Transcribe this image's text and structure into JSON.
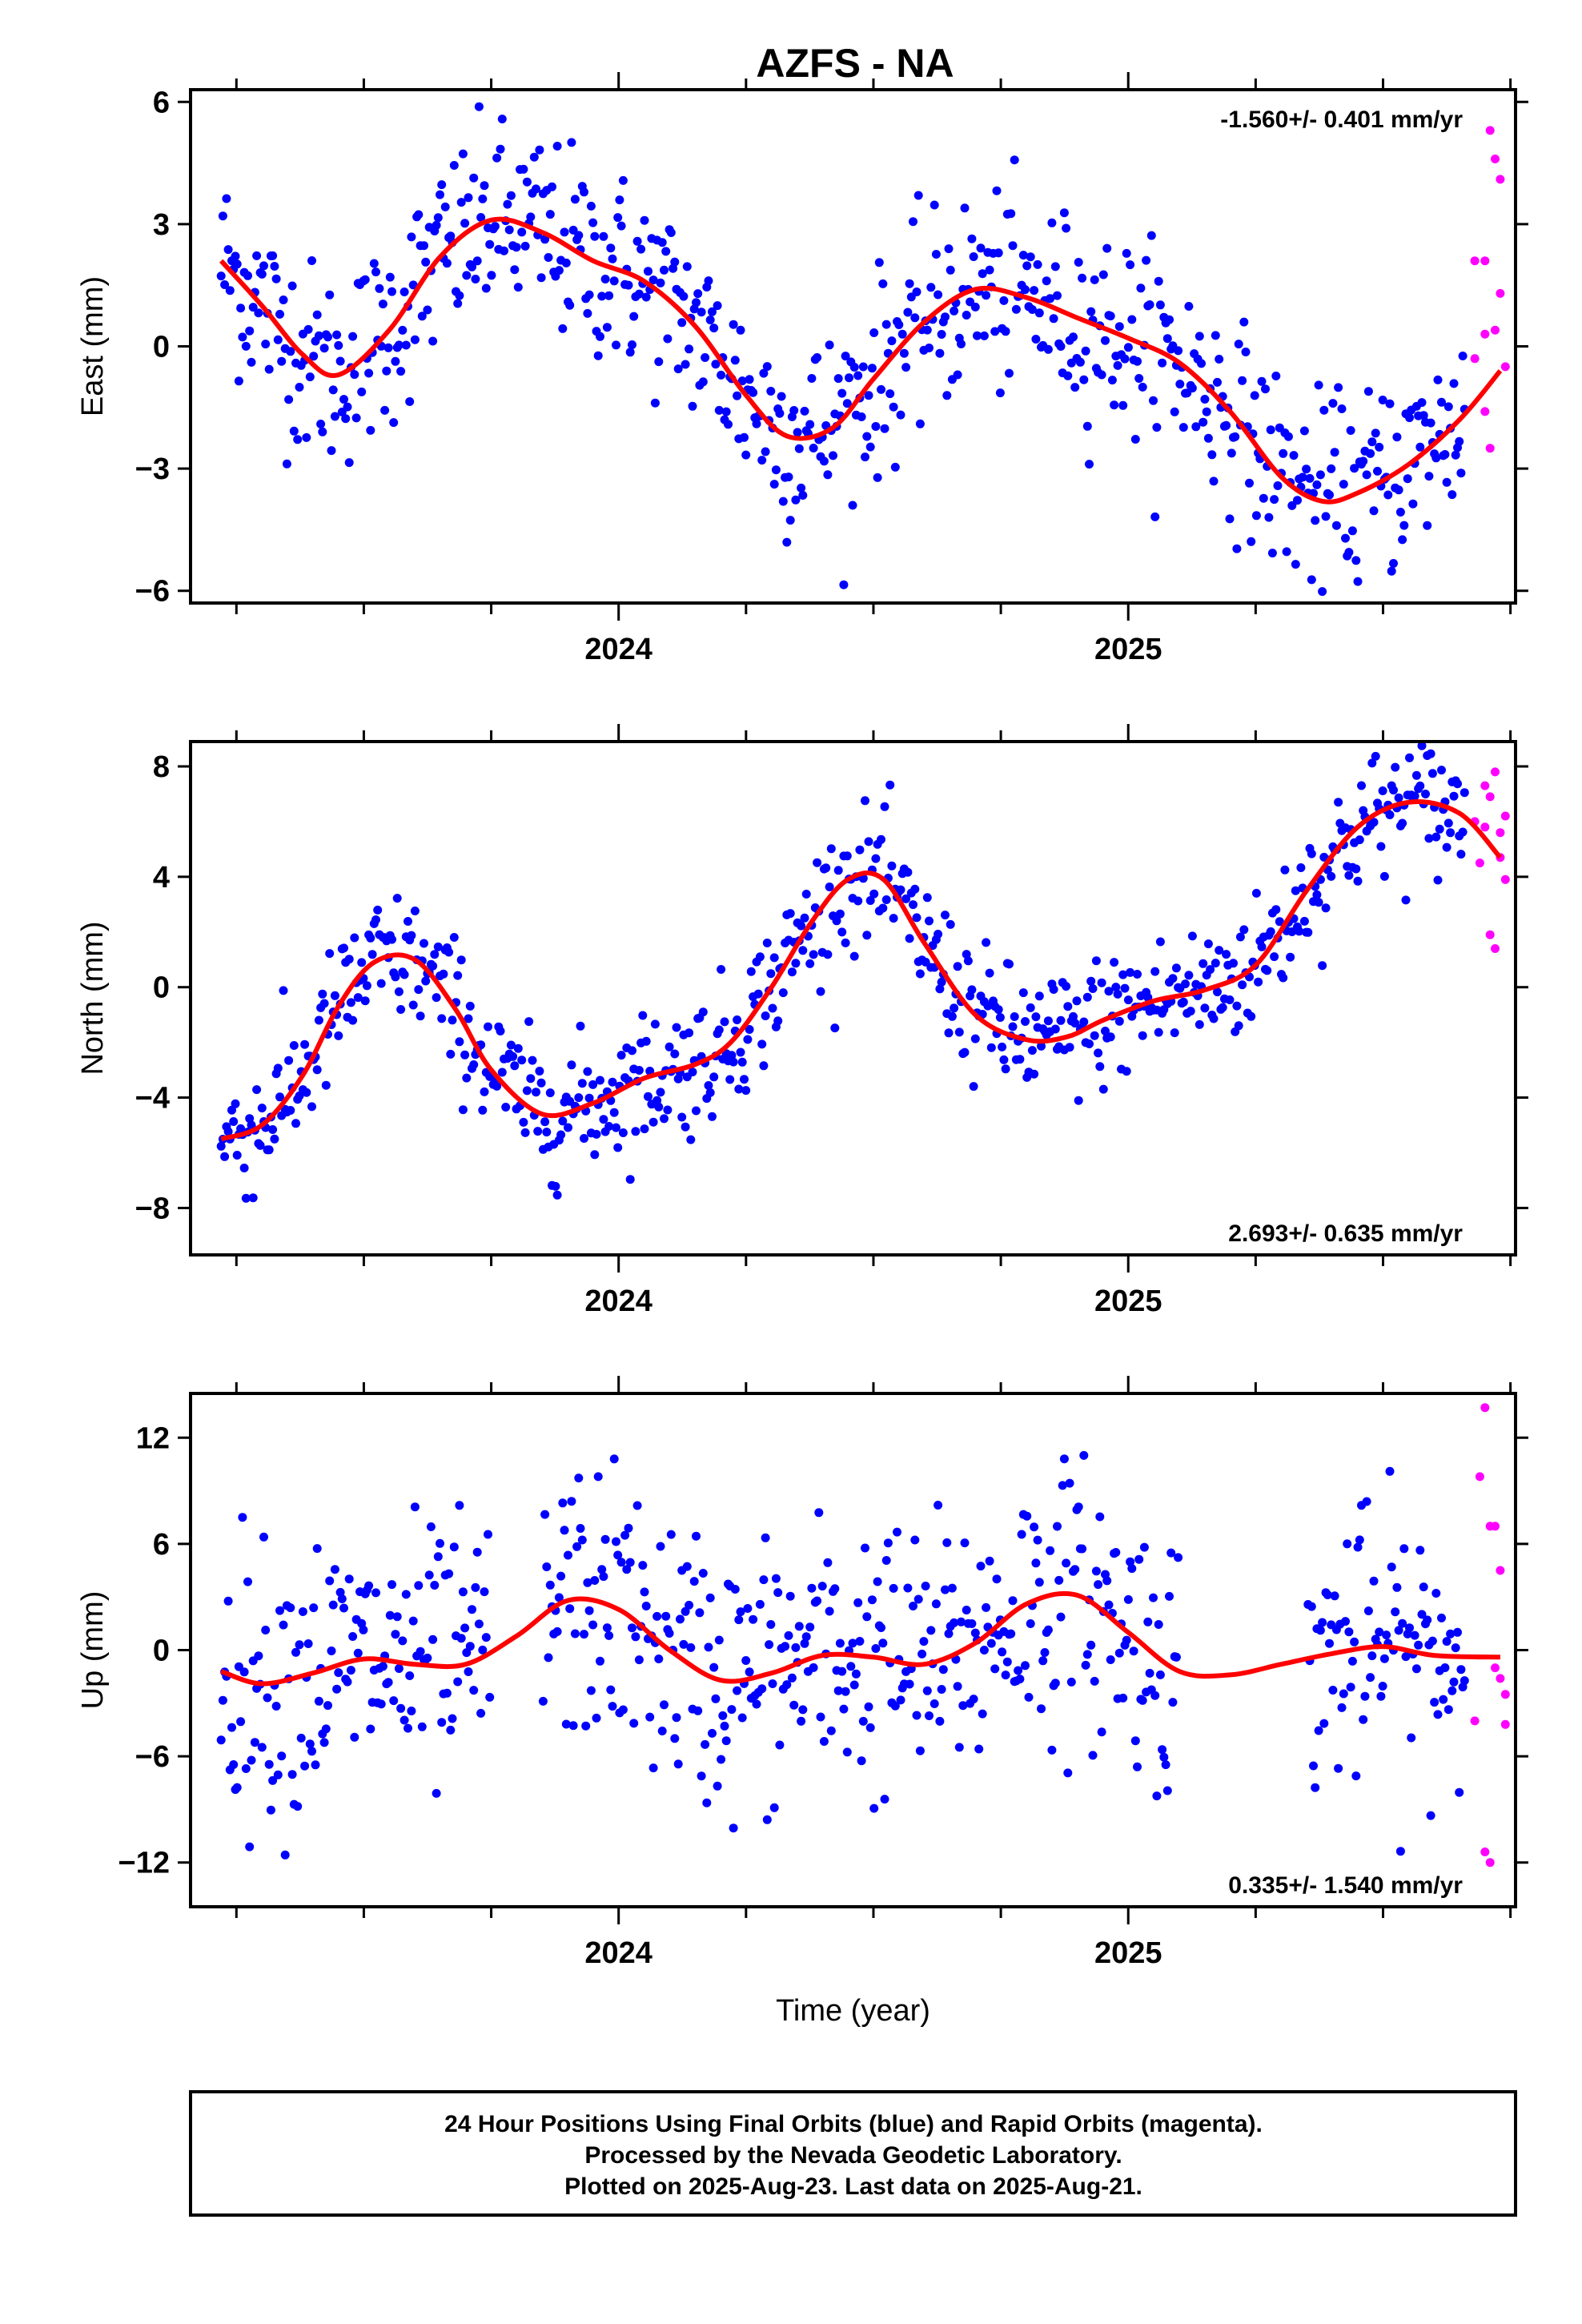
{
  "title": "AZFS - NA",
  "colors": {
    "final": "#0000ff",
    "rapid": "#ff00ff",
    "fit": "#ff0000",
    "frame": "#000000"
  },
  "chart_data": [
    {
      "type": "scatter",
      "ylabel": "East (mm)",
      "xlabel": "",
      "rate_label": "-1.560+/- 0.401 mm/yr",
      "rate_position": "top-right",
      "xlim": [
        2023.16,
        2025.76
      ],
      "ylim": [
        -6.3,
        6.3
      ],
      "yticks": [
        -6,
        -3,
        0,
        3,
        6
      ],
      "ytick_labels": [
        "−6",
        "−3",
        "0",
        "3",
        "6"
      ],
      "xticks_major": [
        2024,
        2025
      ],
      "xtick_labels": [
        "2024",
        "2025"
      ],
      "fit_curve": {
        "x": [
          2023.22,
          2023.3,
          2023.38,
          2023.45,
          2023.55,
          2023.65,
          2023.75,
          2023.85,
          2023.95,
          2024.05,
          2024.15,
          2024.25,
          2024.33,
          2024.42,
          2024.5,
          2024.6,
          2024.7,
          2024.8,
          2024.9,
          2025.0,
          2025.1,
          2025.2,
          2025.3,
          2025.38,
          2025.45,
          2025.55,
          2025.65,
          2025.73
        ],
        "y": [
          2.1,
          1.0,
          -0.2,
          -0.7,
          0.4,
          2.2,
          3.1,
          2.8,
          2.1,
          1.6,
          0.5,
          -1.2,
          -2.2,
          -2.0,
          -0.8,
          0.6,
          1.4,
          1.2,
          0.7,
          0.2,
          -0.4,
          -1.6,
          -3.2,
          -3.8,
          -3.6,
          -2.9,
          -1.8,
          -0.6
        ]
      },
      "final_trend": {
        "start": 2023.22,
        "end": 2025.66,
        "sample_count": 700,
        "scatter": 1.2
      },
      "rapid_points": {
        "x": [
          2025.68,
          2025.68,
          2025.7,
          2025.7,
          2025.7,
          2025.71,
          2025.71,
          2025.72,
          2025.72,
          2025.73,
          2025.73,
          2025.74
        ],
        "y": [
          2.1,
          -0.3,
          2.1,
          -1.6,
          0.3,
          -2.5,
          5.3,
          0.4,
          4.6,
          1.3,
          4.1,
          -0.5
        ]
      }
    },
    {
      "type": "scatter",
      "ylabel": "North (mm)",
      "xlabel": "",
      "rate_label": "2.693+/- 0.635 mm/yr",
      "rate_position": "bottom-right",
      "xlim": [
        2023.16,
        2025.76
      ],
      "ylim": [
        -9.7,
        8.9
      ],
      "yticks": [
        -8,
        -4,
        0,
        4,
        8
      ],
      "ytick_labels": [
        "−8",
        "−4",
        "0",
        "4",
        "8"
      ],
      "xticks_major": [
        2024,
        2025
      ],
      "xtick_labels": [
        "2024",
        "2025"
      ],
      "fit_curve": {
        "x": [
          2023.22,
          2023.3,
          2023.38,
          2023.45,
          2023.52,
          2023.6,
          2023.68,
          2023.75,
          2023.85,
          2023.95,
          2024.05,
          2024.15,
          2024.22,
          2024.3,
          2024.38,
          2024.45,
          2024.52,
          2024.6,
          2024.7,
          2024.8,
          2024.88,
          2024.95,
          2025.05,
          2025.15,
          2025.25,
          2025.35,
          2025.45,
          2025.55,
          2025.65,
          2025.73
        ],
        "y": [
          -5.5,
          -5.0,
          -3.2,
          -0.7,
          0.9,
          1.0,
          -0.8,
          -3.0,
          -4.6,
          -4.2,
          -3.3,
          -2.8,
          -2.0,
          0.0,
          2.4,
          3.9,
          3.9,
          1.6,
          -1.0,
          -1.9,
          -1.8,
          -1.2,
          -0.5,
          -0.1,
          0.8,
          3.5,
          5.8,
          6.7,
          6.3,
          4.7
        ]
      },
      "final_trend": {
        "start": 2023.22,
        "end": 2025.66,
        "sample_count": 700,
        "scatter": 1.2
      },
      "rapid_points": {
        "x": [
          2025.68,
          2025.69,
          2025.7,
          2025.7,
          2025.71,
          2025.71,
          2025.72,
          2025.72,
          2025.73,
          2025.73,
          2025.74,
          2025.74
        ],
        "y": [
          6.0,
          4.5,
          7.3,
          5.8,
          1.9,
          6.9,
          7.8,
          1.4,
          5.6,
          4.7,
          3.9,
          6.2
        ]
      }
    },
    {
      "type": "scatter",
      "ylabel": "Up (mm)",
      "xlabel": "Time (year)",
      "rate_label": "0.335+/- 1.540 mm/yr",
      "rate_position": "bottom-right",
      "xlim": [
        2023.16,
        2025.76
      ],
      "ylim": [
        -14.5,
        14.5
      ],
      "yticks": [
        -12,
        -6,
        0,
        6,
        12
      ],
      "ytick_labels": [
        "−12",
        "−6",
        "0",
        "6",
        "12"
      ],
      "xticks_major": [
        2024,
        2025
      ],
      "xtick_labels": [
        "2024",
        "2025"
      ],
      "fit_curve": {
        "x": [
          2023.22,
          2023.3,
          2023.4,
          2023.5,
          2023.6,
          2023.7,
          2023.8,
          2023.9,
          2024.0,
          2024.1,
          2024.2,
          2024.3,
          2024.4,
          2024.5,
          2024.6,
          2024.7,
          2024.8,
          2024.9,
          2025.0,
          2025.1,
          2025.2,
          2025.3,
          2025.4,
          2025.5,
          2025.6,
          2025.73
        ],
        "y": [
          -1.2,
          -1.9,
          -1.3,
          -0.5,
          -0.8,
          -0.8,
          0.8,
          2.8,
          2.3,
          0.0,
          -1.7,
          -1.3,
          -0.3,
          -0.4,
          -0.8,
          0.4,
          2.6,
          3.1,
          1.0,
          -1.2,
          -1.4,
          -0.8,
          -0.2,
          0.2,
          -0.3,
          -0.4
        ]
      },
      "final_trend": {
        "start": 2023.22,
        "end": 2025.66,
        "sample_count": 700,
        "scatter": 3.8,
        "gaps": [
          [
            2023.75,
            2023.85
          ],
          [
            2025.1,
            2025.35
          ]
        ]
      },
      "rapid_points": {
        "x": [
          2025.68,
          2025.69,
          2025.7,
          2025.7,
          2025.71,
          2025.71,
          2025.72,
          2025.72,
          2025.73,
          2025.73,
          2025.74,
          2025.74
        ],
        "y": [
          -4.0,
          9.8,
          -11.4,
          13.7,
          -12.0,
          7.0,
          -1.0,
          7.0,
          -1.6,
          4.5,
          -4.2,
          -2.5
        ]
      }
    }
  ],
  "footer": {
    "line1": "24 Hour Positions Using Final Orbits (blue) and Rapid Orbits (magenta).",
    "line2": "Processed by the Nevada Geodetic Laboratory.",
    "line3": "Plotted on 2025-Aug-23. Last data on 2025-Aug-21."
  }
}
